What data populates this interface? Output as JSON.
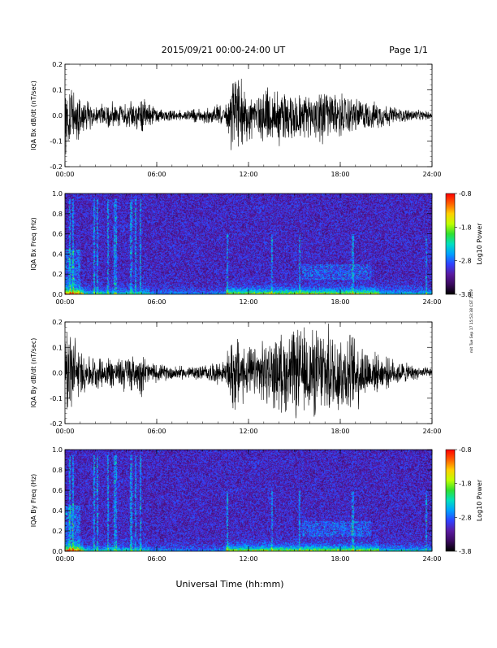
{
  "header": {
    "title": "2015/09/21  00:00-24:00 UT",
    "page": "Page 1/1"
  },
  "footer": {
    "xlabel": "Universal Time (hh:mm)",
    "side_stamp": "mit Tue Sep 17 15:53:38 CST 2019"
  },
  "colors": {
    "trace": "#000000",
    "colormap": [
      "#000000",
      "#3a0a5e",
      "#5a1aa0",
      "#3040ff",
      "#00a0ff",
      "#00e0c0",
      "#30e030",
      "#c0ff00",
      "#ffd000",
      "#ff6000",
      "#ff0000"
    ]
  },
  "chart_data": [
    {
      "type": "line",
      "name": "Bx waveform",
      "ylabel": "IQA Bx dB/dt (nT/sec)",
      "ylim": [
        -0.2,
        0.2
      ],
      "yticks": [
        "0.2",
        "0.1",
        "0.0",
        "-0.1",
        "-0.2"
      ],
      "xlim": [
        0,
        24
      ],
      "xticks": [
        "00:00",
        "06:00",
        "12:00",
        "18:00",
        "24:00"
      ],
      "x_hours": [
        0,
        0.5,
        1,
        1.5,
        2,
        2.5,
        3,
        3.5,
        4,
        4.5,
        5,
        5.5,
        6,
        6.5,
        7,
        7.5,
        8,
        8.5,
        9,
        9.5,
        10,
        10.5,
        11,
        11.5,
        12,
        12.5,
        13,
        13.5,
        14,
        14.5,
        15,
        15.5,
        16,
        16.5,
        17,
        17.5,
        18,
        18.5,
        19,
        19.5,
        20,
        20.5,
        21,
        21.5,
        22,
        22.5,
        23,
        23.5,
        24
      ],
      "amplitude": [
        0.2,
        0.2,
        0.09,
        0.07,
        0.05,
        0.05,
        0.06,
        0.05,
        0.08,
        0.06,
        0.09,
        0.05,
        0.04,
        0.03,
        0.03,
        0.025,
        0.025,
        0.03,
        0.03,
        0.04,
        0.05,
        0.04,
        0.2,
        0.15,
        0.12,
        0.11,
        0.13,
        0.12,
        0.14,
        0.12,
        0.12,
        0.1,
        0.11,
        0.12,
        0.12,
        0.11,
        0.1,
        0.09,
        0.08,
        0.07,
        0.06,
        0.06,
        0.05,
        0.04,
        0.03,
        0.03,
        0.025,
        0.02,
        0.02
      ]
    },
    {
      "type": "heatmap",
      "name": "Bx spectrogram",
      "ylabel": "IQA Bx Freq (Hz)",
      "ylim": [
        0,
        1.0
      ],
      "yticks": [
        "1.0",
        "0.8",
        "0.6",
        "0.4",
        "0.2",
        "0.0"
      ],
      "xlim": [
        0,
        24
      ],
      "xticks": [
        "00:00",
        "06:00",
        "12:00",
        "18:00",
        "24:00"
      ],
      "colorbar": {
        "label": "Log10 Power",
        "range": [
          -3.8,
          -0.8
        ],
        "ticks": [
          "-0.8",
          "-1.8",
          "-2.8",
          "-3.8"
        ]
      }
    },
    {
      "type": "line",
      "name": "By waveform",
      "ylabel": "IQA By dB/dt (nT/sec)",
      "ylim": [
        -0.2,
        0.2
      ],
      "yticks": [
        "0.2",
        "0.1",
        "0.0",
        "-0.1",
        "-0.2"
      ],
      "xlim": [
        0,
        24
      ],
      "xticks": [
        "00:00",
        "06:00",
        "12:00",
        "18:00",
        "24:00"
      ],
      "x_hours": [
        0,
        0.5,
        1,
        1.5,
        2,
        2.5,
        3,
        3.5,
        4,
        4.5,
        5,
        5.5,
        6,
        6.5,
        7,
        7.5,
        8,
        8.5,
        9,
        9.5,
        10,
        10.5,
        11,
        11.5,
        12,
        12.5,
        13,
        13.5,
        14,
        14.5,
        15,
        15.5,
        16,
        16.5,
        17,
        17.5,
        18,
        18.5,
        19,
        19.5,
        20,
        20.5,
        21,
        21.5,
        22,
        22.5,
        23,
        23.5,
        24
      ],
      "amplitude": [
        0.2,
        0.2,
        0.1,
        0.08,
        0.07,
        0.07,
        0.08,
        0.06,
        0.1,
        0.07,
        0.1,
        0.05,
        0.04,
        0.035,
        0.035,
        0.03,
        0.03,
        0.03,
        0.035,
        0.04,
        0.05,
        0.05,
        0.2,
        0.15,
        0.11,
        0.12,
        0.14,
        0.15,
        0.17,
        0.18,
        0.2,
        0.2,
        0.2,
        0.2,
        0.2,
        0.2,
        0.2,
        0.18,
        0.17,
        0.14,
        0.1,
        0.08,
        0.07,
        0.06,
        0.05,
        0.04,
        0.03,
        0.025,
        0.02
      ]
    },
    {
      "type": "heatmap",
      "name": "By spectrogram",
      "ylabel": "IQA By Freq (Hz)",
      "ylim": [
        0,
        1.0
      ],
      "yticks": [
        "1.0",
        "0.8",
        "0.6",
        "0.4",
        "0.2",
        "0.0"
      ],
      "xlim": [
        0,
        24
      ],
      "xticks": [
        "00:00",
        "06:00",
        "12:00",
        "18:00",
        "24:00"
      ],
      "colorbar": {
        "label": "Log10 Power",
        "range": [
          -3.8,
          -0.8
        ],
        "ticks": [
          "-0.8",
          "-1.8",
          "-2.8",
          "-3.8"
        ]
      }
    }
  ]
}
